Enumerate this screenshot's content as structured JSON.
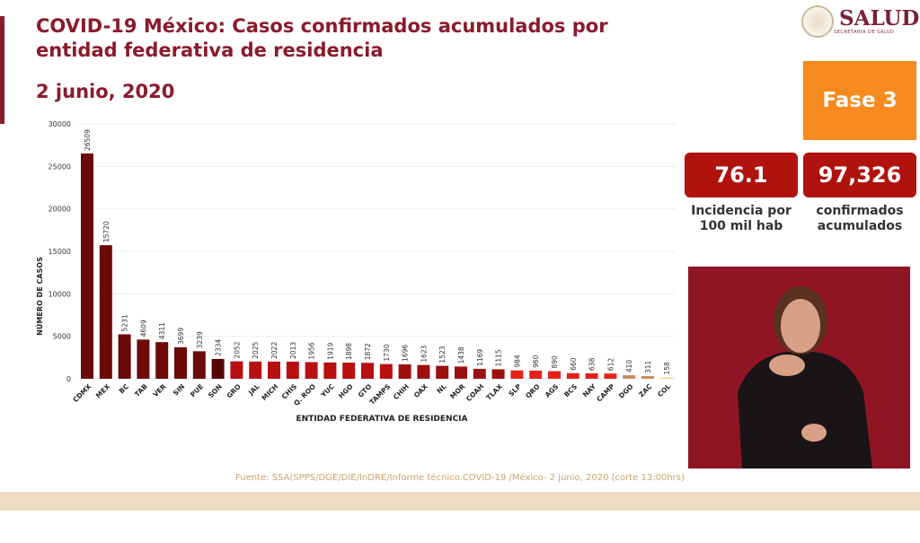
{
  "header": {
    "title": "COVID-19 México: Casos confirmados acumulados por entidad federativa de residencia",
    "date": "2 junio, 2020"
  },
  "logo": {
    "name": "SALUD",
    "subtitle": "SECRETARÍA DE SALUD"
  },
  "phase": "Fase 3",
  "stats": [
    {
      "value": "76.1",
      "caption": "Incidencia por 100 mil hab"
    },
    {
      "value": "97,326",
      "caption": "confirmados acumulados"
    }
  ],
  "footer": "Fuente: SSA(SPPS/DGE/DIE/InDRE/Informe técnico.COVID-19 /México- 2 junio, 2020 (corte 13:00hrs)",
  "chart_data": {
    "type": "bar",
    "title": "",
    "xlabel": "ENTIDAD FEDERATIVA DE RESIDENCIA",
    "ylabel": "NÚMERO DE CASOS",
    "ylim": [
      0,
      30000
    ],
    "yticks": [
      0,
      5000,
      10000,
      15000,
      20000,
      25000,
      30000
    ],
    "grid": true,
    "categories": [
      "CDMX",
      "MEX",
      "BC",
      "TAB",
      "VER",
      "SIN",
      "PUE",
      "SON",
      "GRO",
      "JAL",
      "MICH",
      "CHIS",
      "Q. ROO",
      "YUC",
      "HGO",
      "GTO",
      "TAMPS",
      "CHIH",
      "OAX",
      "NL",
      "MOR",
      "COAH",
      "TLAX",
      "SLP",
      "QRO",
      "AGS",
      "BCS",
      "NAY",
      "CAMP",
      "DGO",
      "ZAC",
      "COL"
    ],
    "values": [
      26509,
      15720,
      5231,
      4609,
      4311,
      3699,
      3239,
      2334,
      2052,
      2025,
      2022,
      2013,
      1956,
      1919,
      1898,
      1872,
      1730,
      1696,
      1623,
      1523,
      1438,
      1169,
      1115,
      984,
      960,
      890,
      660,
      638,
      612,
      410,
      311,
      158
    ],
    "colors": [
      "#6c0a0a",
      "#6c0a0a",
      "#6c0a0a",
      "#6c0a0a",
      "#6c0a0a",
      "#6c0a0a",
      "#6c0a0a",
      "#560606",
      "#b81010",
      "#b81010",
      "#b81010",
      "#b81010",
      "#b81010",
      "#b81010",
      "#b81010",
      "#b81010",
      "#b81010",
      "#9c1010",
      "#9c1010",
      "#9c1010",
      "#9c1010",
      "#9c1010",
      "#9c1010",
      "#e3231a",
      "#e3231a",
      "#e3231a",
      "#e3231a",
      "#e3231a",
      "#e3231a",
      "#c98a5a",
      "#c98a5a",
      "#f0d890"
    ]
  }
}
